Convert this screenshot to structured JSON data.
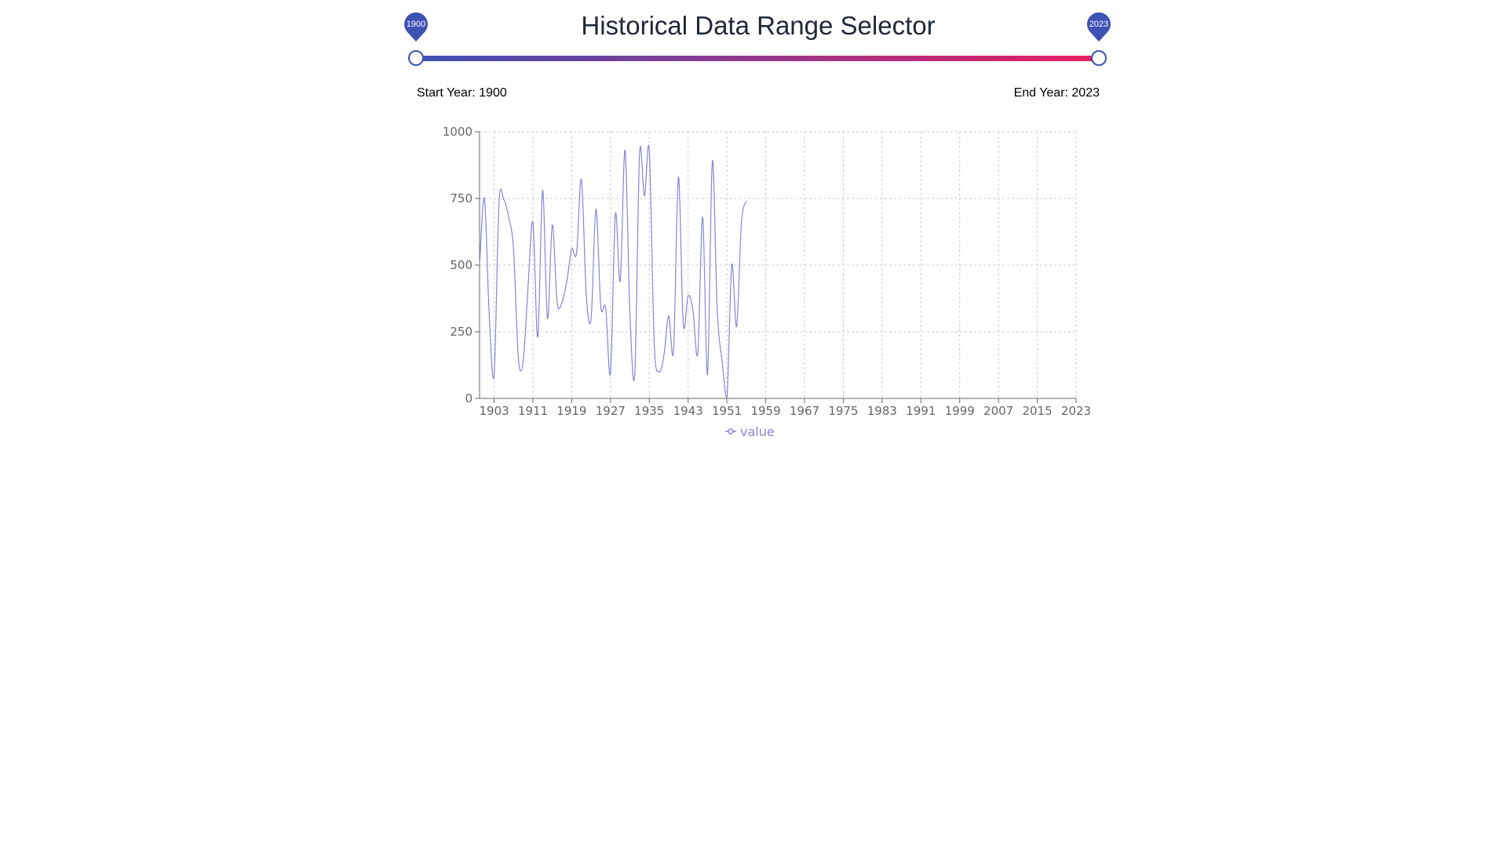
{
  "header": {
    "title": "Historical Data Range Selector"
  },
  "slider": {
    "start_value": "1900",
    "end_value": "2023",
    "start_label": "Start Year: 1900",
    "end_label": "End Year: 2023",
    "gradient_start": "#3f51b5",
    "gradient_end": "#e91e63",
    "thumb_color": "#3f51b5"
  },
  "chart_data": {
    "type": "line",
    "line_color": "#8884d8",
    "grid": true,
    "grid_style": "dashed",
    "legend_position": "bottom",
    "x_range": [
      1900,
      2023
    ],
    "ylim": [
      0,
      1000
    ],
    "x_ticks": [
      "1903",
      "1911",
      "1919",
      "1927",
      "1935",
      "1943",
      "1951",
      "1959",
      "1967",
      "1975",
      "1983",
      "1991",
      "1999",
      "2007",
      "2015",
      "2023"
    ],
    "y_ticks": [
      "0",
      "250",
      "500",
      "750",
      "1000"
    ],
    "series": [
      {
        "name": "value",
        "x": [
          1900,
          1901,
          1902,
          1903,
          1904,
          1905,
          1906,
          1907,
          1908,
          1909,
          1910,
          1911,
          1912,
          1913,
          1914,
          1915,
          1916,
          1917,
          1918,
          1919,
          1920,
          1921,
          1922,
          1923,
          1924,
          1925,
          1926,
          1927,
          1928,
          1929,
          1930,
          1931,
          1932,
          1933,
          1934,
          1935,
          1936,
          1937,
          1938,
          1939,
          1940,
          1941,
          1942,
          1943,
          1944,
          1945,
          1946,
          1947,
          1948,
          1949,
          1950,
          1951,
          1952,
          1953,
          1954,
          1955
        ],
        "values": [
          500,
          750,
          310,
          90,
          730,
          745,
          680,
          560,
          150,
          140,
          420,
          660,
          230,
          780,
          300,
          650,
          360,
          360,
          440,
          560,
          545,
          820,
          390,
          300,
          710,
          345,
          340,
          95,
          690,
          440,
          930,
          320,
          90,
          920,
          760,
          930,
          210,
          100,
          160,
          310,
          180,
          830,
          280,
          385,
          330,
          170,
          680,
          90,
          890,
          330,
          140,
          0,
          500,
          270,
          660,
          740
        ]
      }
    ]
  }
}
